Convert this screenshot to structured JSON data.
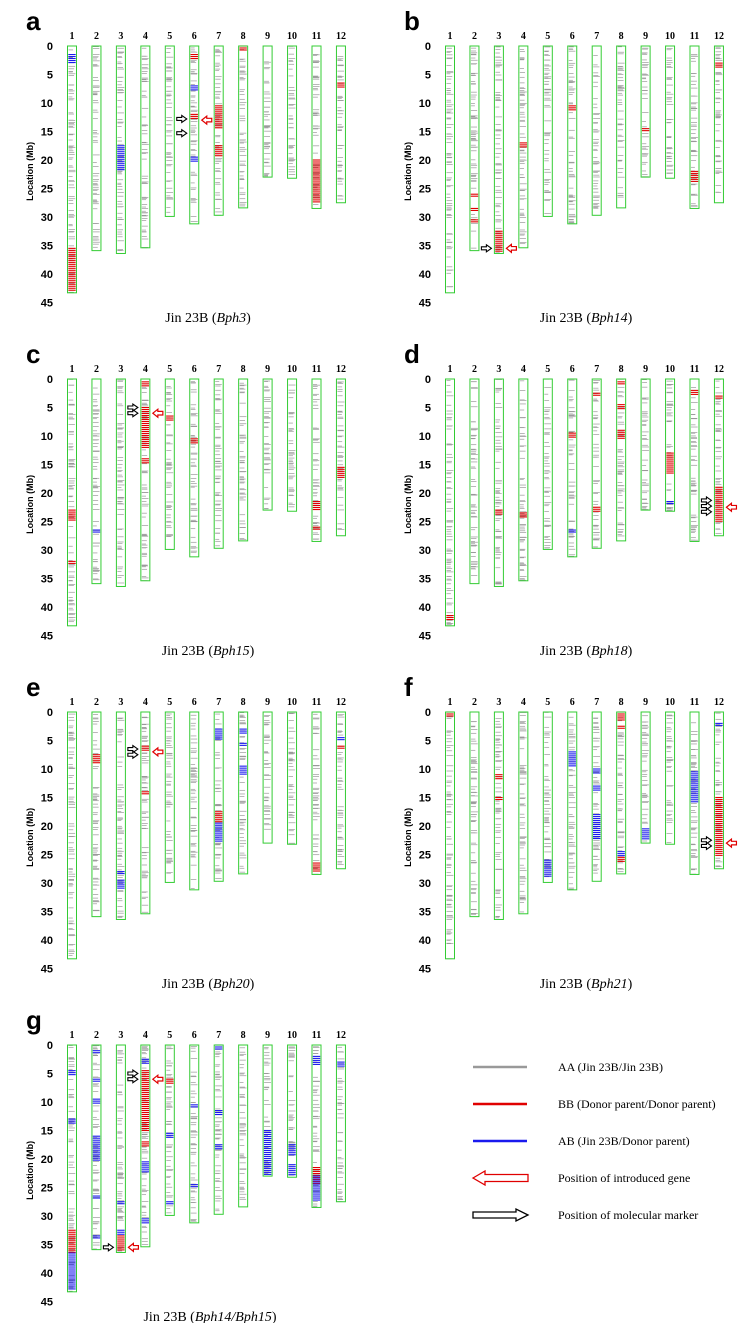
{
  "colors": {
    "outline": "#33cc33",
    "AA": "#999999",
    "BB": "#e00000",
    "AB": "#1a1aee",
    "gene_arrow": "#e00000",
    "marker_arrow": "#000000"
  },
  "axis": {
    "ylabel": "Location (Mb)",
    "ticks": [
      0,
      5,
      10,
      15,
      20,
      25,
      30,
      35,
      40,
      45
    ],
    "max": 45
  },
  "chromosome_labels": [
    "1",
    "2",
    "3",
    "4",
    "5",
    "6",
    "7",
    "8",
    "9",
    "10",
    "11",
    "12"
  ],
  "chromosome_lengths_mb": [
    43.3,
    35.9,
    36.4,
    35.4,
    29.9,
    31.2,
    29.7,
    28.4,
    23.0,
    23.2,
    28.5,
    27.5
  ],
  "legend": [
    {
      "key": "AA",
      "kind": "line",
      "label": "AA (Jin 23B/Jin 23B)"
    },
    {
      "key": "BB",
      "kind": "line",
      "label": "BB (Donor parent/Donor parent)"
    },
    {
      "key": "AB",
      "kind": "line",
      "label": "AB (Jin 23B/Donor parent)"
    },
    {
      "key": "gene_arrow",
      "kind": "hollow-arrow-left",
      "label": "Position of introduced gene"
    },
    {
      "key": "marker_arrow",
      "kind": "hollow-arrow-right",
      "label": "Position of molecular marker"
    }
  ],
  "panels": [
    {
      "letter": "a",
      "caption_prefix": "Jin 23B (",
      "gene": "Bph3",
      "caption_suffix": ")",
      "red": {
        "1": [
          [
            35.5,
            43.2
          ]
        ],
        "6": [
          [
            1.5,
            2.2
          ],
          [
            12.0,
            13.0
          ]
        ],
        "7": [
          [
            10.5,
            14.5
          ],
          [
            17.5,
            19.5
          ]
        ],
        "8": [
          [
            0,
            1.0
          ]
        ],
        "11": [
          [
            20.0,
            27.5
          ]
        ],
        "12": [
          [
            6.5,
            7.2
          ]
        ]
      },
      "blue": {
        "1": [
          [
            1.5,
            3.0
          ]
        ],
        "3": [
          [
            17.5,
            22.0
          ]
        ],
        "6": [
          [
            7.0,
            8.0
          ],
          [
            19.5,
            20.5
          ]
        ]
      },
      "gene_arrows": [
        {
          "chrom": 6,
          "mb": 13.0
        }
      ],
      "marker_arrows": [
        {
          "chrom": 6,
          "mb": 12.8
        },
        {
          "chrom": 6,
          "mb": 15.3
        }
      ]
    },
    {
      "letter": "b",
      "caption_prefix": "Jin 23B (",
      "gene": "Bph14",
      "caption_suffix": ")",
      "red": {
        "2": [
          [
            26.0,
            26.6
          ],
          [
            28.5,
            29.1
          ],
          [
            30.5,
            31.1
          ]
        ],
        "3": [
          [
            32.5,
            36.3
          ]
        ],
        "4": [
          [
            17.0,
            17.8
          ]
        ],
        "6": [
          [
            10.5,
            11.2
          ]
        ],
        "9": [
          [
            14.5,
            15.0
          ]
        ],
        "11": [
          [
            22.0,
            24.0
          ]
        ],
        "12": [
          [
            3.0,
            4.0
          ]
        ]
      },
      "blue": {},
      "gene_arrows": [
        {
          "chrom": 3,
          "mb": 35.5
        }
      ],
      "marker_arrows": [
        {
          "chrom": 3,
          "mb": 35.5
        }
      ]
    },
    {
      "letter": "c",
      "caption_prefix": "Jin 23B (",
      "gene": "Bph15",
      "caption_suffix": ")",
      "red": {
        "1": [
          [
            23.0,
            25.0
          ],
          [
            32.0,
            32.6
          ]
        ],
        "4": [
          [
            0.5,
            1.2
          ],
          [
            5.0,
            12.0
          ],
          [
            14.0,
            15.0
          ]
        ],
        "5": [
          [
            6.5,
            7.2
          ]
        ],
        "6": [
          [
            10.5,
            11.5
          ]
        ],
        "11": [
          [
            21.5,
            23.0
          ],
          [
            26.0,
            26.5
          ]
        ],
        "12": [
          [
            15.5,
            17.5
          ]
        ]
      },
      "blue": {
        "2": [
          [
            26.5,
            27.0
          ]
        ]
      },
      "gene_arrows": [
        {
          "chrom": 4,
          "mb": 6.0
        }
      ],
      "marker_arrows": [
        {
          "chrom": 4,
          "mb": 5.0
        },
        {
          "chrom": 4,
          "mb": 6.0
        }
      ]
    },
    {
      "letter": "d",
      "caption_prefix": "Jin 23B (",
      "gene": "Bph18",
      "caption_suffix": ")",
      "red": {
        "1": [
          [
            41.5,
            42.2
          ]
        ],
        "3": [
          [
            23.0,
            23.8
          ]
        ],
        "4": [
          [
            23.5,
            24.5
          ]
        ],
        "6": [
          [
            9.5,
            10.5
          ]
        ],
        "7": [
          [
            2.5,
            3.0
          ],
          [
            22.5,
            23.5
          ]
        ],
        "8": [
          [
            0.5,
            1.0
          ],
          [
            4.5,
            5.5
          ],
          [
            9.0,
            10.5
          ]
        ],
        "10": [
          [
            13.0,
            16.5
          ]
        ],
        "11": [
          [
            2.0,
            3.0
          ]
        ],
        "12": [
          [
            3.0,
            3.6
          ],
          [
            19.0,
            25.0
          ]
        ]
      },
      "blue": {
        "6": [
          [
            26.5,
            27.0
          ]
        ],
        "10": [
          [
            21.5,
            22.0
          ]
        ]
      },
      "gene_arrows": [
        {
          "chrom": 12,
          "mb": 22.5
        }
      ],
      "marker_arrows": [
        {
          "chrom": 12,
          "mb": 21.3
        },
        {
          "chrom": 12,
          "mb": 22.3
        },
        {
          "chrom": 12,
          "mb": 23.3
        }
      ]
    },
    {
      "letter": "e",
      "caption_prefix": "Jin 23B (",
      "gene": "Bph20",
      "caption_suffix": ")",
      "red": {
        "2": [
          [
            7.5,
            9.0
          ]
        ],
        "4": [
          [
            6.0,
            7.0
          ],
          [
            14.0,
            14.5
          ]
        ],
        "7": [
          [
            17.5,
            19.5
          ]
        ],
        "11": [
          [
            26.5,
            28.2
          ]
        ],
        "12": [
          [
            6.0,
            6.6
          ]
        ]
      },
      "blue": {
        "3": [
          [
            28.0,
            28.5
          ],
          [
            29.5,
            31.0
          ]
        ],
        "7": [
          [
            3.0,
            5.0
          ],
          [
            19.5,
            23.0
          ]
        ],
        "8": [
          [
            3.0,
            4.0
          ],
          [
            5.5,
            6.0
          ],
          [
            9.5,
            11.0
          ]
        ],
        "12": [
          [
            4.5,
            5.0
          ]
        ]
      },
      "gene_arrows": [
        {
          "chrom": 4,
          "mb": 7.0
        }
      ],
      "marker_arrows": [
        {
          "chrom": 4,
          "mb": 6.5
        },
        {
          "chrom": 4,
          "mb": 7.5
        }
      ]
    },
    {
      "letter": "f",
      "caption_prefix": "Jin 23B (",
      "gene": "Bph21",
      "caption_suffix": ")",
      "red": {
        "1": [
          [
            0,
            1.0
          ]
        ],
        "3": [
          [
            11.0,
            12.0
          ],
          [
            15.0,
            15.5
          ]
        ],
        "8": [
          [
            0,
            1.5
          ],
          [
            2.5,
            3.0
          ],
          [
            25.5,
            26.5
          ]
        ],
        "12": [
          [
            15.0,
            25.5
          ]
        ]
      },
      "blue": {
        "5": [
          [
            26.0,
            29.0
          ]
        ],
        "6": [
          [
            7.0,
            9.5
          ]
        ],
        "7": [
          [
            10.0,
            11.0
          ],
          [
            13.0,
            14.0
          ],
          [
            18.0,
            22.5
          ]
        ],
        "8": [
          [
            24.5,
            25.5
          ]
        ],
        "9": [
          [
            20.5,
            22.5
          ]
        ],
        "11": [
          [
            10.5,
            16.0
          ]
        ],
        "12": [
          [
            2.0,
            2.5
          ]
        ]
      },
      "gene_arrows": [
        {
          "chrom": 12,
          "mb": 23.0
        }
      ],
      "marker_arrows": [
        {
          "chrom": 12,
          "mb": 22.5
        },
        {
          "chrom": 12,
          "mb": 23.5
        }
      ]
    },
    {
      "letter": "g",
      "caption_prefix": "Jin 23B (",
      "gene": "Bph14/Bph15",
      "caption_suffix": ")",
      "red": {
        "1": [
          [
            32.5,
            36.5
          ]
        ],
        "3": [
          [
            33.5,
            36.3
          ]
        ],
        "4": [
          [
            4.5,
            15.0
          ],
          [
            17.0,
            18.0
          ]
        ],
        "5": [
          [
            6.0,
            7.0
          ]
        ],
        "11": [
          [
            21.5,
            24.5
          ]
        ]
      },
      "blue": {
        "1": [
          [
            4.5,
            5.5
          ],
          [
            13.0,
            14.0
          ],
          [
            36.5,
            43.0
          ]
        ],
        "2": [
          [
            1.0,
            1.5
          ],
          [
            6.0,
            6.5
          ],
          [
            9.5,
            10.5
          ],
          [
            16.0,
            20.5
          ],
          [
            26.5,
            27.0
          ],
          [
            33.5,
            34.0
          ]
        ],
        "3": [
          [
            27.5,
            28.0
          ],
          [
            32.5,
            33.5
          ]
        ],
        "4": [
          [
            2.5,
            3.5
          ],
          [
            20.5,
            22.5
          ],
          [
            30.5,
            31.5
          ]
        ],
        "5": [
          [
            15.5,
            16.5
          ],
          [
            27.5,
            28.0
          ]
        ],
        "6": [
          [
            10.5,
            11.0
          ],
          [
            24.5,
            25.0
          ]
        ],
        "7": [
          [
            0,
            1.0
          ],
          [
            11.5,
            12.5
          ],
          [
            17.5,
            18.5
          ]
        ],
        "9": [
          [
            15.0,
            23.0
          ]
        ],
        "10": [
          [
            17.5,
            19.5
          ],
          [
            21.0,
            23.0
          ]
        ],
        "11": [
          [
            2.0,
            3.5
          ],
          [
            23.0,
            27.5
          ]
        ],
        "12": [
          [
            3.0,
            4.0
          ]
        ]
      },
      "gene_arrows": [
        {
          "chrom": 3,
          "mb": 35.5
        },
        {
          "chrom": 4,
          "mb": 6.0
        }
      ],
      "marker_arrows": [
        {
          "chrom": 3,
          "mb": 35.5
        },
        {
          "chrom": 4,
          "mb": 5.0
        },
        {
          "chrom": 4,
          "mb": 6.0
        }
      ]
    }
  ]
}
